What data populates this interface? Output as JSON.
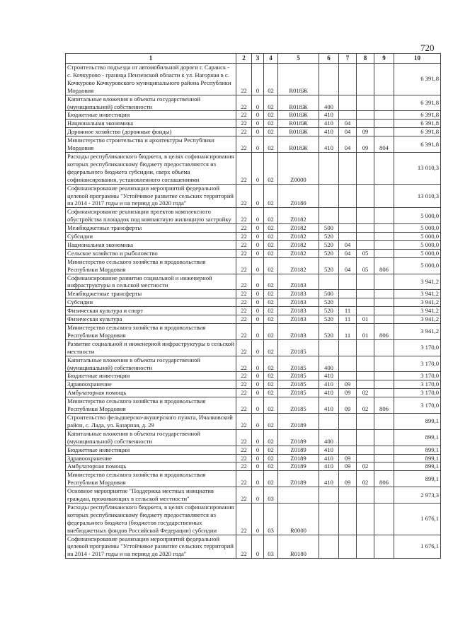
{
  "page_number": "720",
  "columns": [
    "1",
    "2",
    "3",
    "4",
    "5",
    "6",
    "7",
    "8",
    "9",
    "10"
  ],
  "rows": [
    {
      "name": "Строительство подъезда от автомобильной дороги г. Саранск - с. Кочкурово - граница Пензенской области к ул. Нагорная в с. Кочкурово Кочкуровского муниципального района Республики Мордовия",
      "c": [
        "22",
        "0",
        "02",
        "R018Ж",
        "",
        "",
        "",
        ""
      ],
      "value": "6 391,8"
    },
    {
      "name": "Капитальные вложения в объекты государственной (муниципальной) собственности",
      "c": [
        "22",
        "0",
        "02",
        "R018Ж",
        "400",
        "",
        "",
        ""
      ],
      "value": "6 391,8"
    },
    {
      "name": "Бюджетные инвестиции",
      "c": [
        "22",
        "0",
        "02",
        "R018Ж",
        "410",
        "",
        "",
        ""
      ],
      "value": "6 391,8"
    },
    {
      "name": "Национальная экономика",
      "c": [
        "22",
        "0",
        "02",
        "R018Ж",
        "410",
        "04",
        "",
        ""
      ],
      "value": "6 391,8"
    },
    {
      "name": "Дорожное хозяйство (дорожные фонды)",
      "c": [
        "22",
        "0",
        "02",
        "R018Ж",
        "410",
        "04",
        "09",
        ""
      ],
      "value": "6 391,8"
    },
    {
      "name": "Министерство строительства и архитектуры Республики Мордовия",
      "c": [
        "22",
        "0",
        "02",
        "R018Ж",
        "410",
        "04",
        "09",
        "804"
      ],
      "value": "6 391,8"
    },
    {
      "name": "Расходы республиканского бюджета, в целях софинансирования которых республиканскому бюджету предоставляются из федерального бюджета субсидии, сверх объема софинансирования, установленного соглашениями",
      "c": [
        "22",
        "0",
        "02",
        "Z0000",
        "",
        "",
        "",
        ""
      ],
      "value": "13 010,3"
    },
    {
      "name": "Софинансирование реализации мероприятий федеральной целевой программы \"Устойчивое развитие сельских территорий на 2014 - 2017 годы и на период до 2020 года\"",
      "c": [
        "22",
        "0",
        "02",
        "Z0180",
        "",
        "",
        "",
        ""
      ],
      "value": "13 010,3"
    },
    {
      "name": "Софинансирование реализации проектов комплексного обустройства площадок под компактную жилищную застройку",
      "c": [
        "22",
        "0",
        "02",
        "Z0182",
        "",
        "",
        "",
        ""
      ],
      "value": "5 000,0"
    },
    {
      "name": "Межбюджетные трансферты",
      "c": [
        "22",
        "0",
        "02",
        "Z0182",
        "500",
        "",
        "",
        ""
      ],
      "value": "5 000,0"
    },
    {
      "name": "Субсидии",
      "c": [
        "22",
        "0",
        "02",
        "Z0182",
        "520",
        "",
        "",
        ""
      ],
      "value": "5 000,0"
    },
    {
      "name": "Национальная экономика",
      "c": [
        "22",
        "0",
        "02",
        "Z0182",
        "520",
        "04",
        "",
        ""
      ],
      "value": "5 000,0"
    },
    {
      "name": "Сельское хозяйство и рыболовство",
      "c": [
        "22",
        "0",
        "02",
        "Z0182",
        "520",
        "04",
        "05",
        ""
      ],
      "value": "5 000,0"
    },
    {
      "name": "Министерство сельского хозяйства и продовольствия Республики Мордовия",
      "c": [
        "22",
        "0",
        "02",
        "Z0182",
        "520",
        "04",
        "05",
        "806"
      ],
      "value": "5 000,0"
    },
    {
      "name": "Софинансирование развития социальной и инженерной инфраструктуры в сельской местности",
      "c": [
        "22",
        "0",
        "02",
        "Z0183",
        "",
        "",
        "",
        ""
      ],
      "value": "3 941,2"
    },
    {
      "name": "Межбюджетные трансферты",
      "c": [
        "22",
        "0",
        "02",
        "Z0183",
        "500",
        "",
        "",
        ""
      ],
      "value": "3 941,2"
    },
    {
      "name": "Субсидии",
      "c": [
        "22",
        "0",
        "02",
        "Z0183",
        "520",
        "",
        "",
        ""
      ],
      "value": "3 941,2"
    },
    {
      "name": "Физическая культура и спорт",
      "c": [
        "22",
        "0",
        "02",
        "Z0183",
        "520",
        "11",
        "",
        ""
      ],
      "value": "3 941,2"
    },
    {
      "name": "Физическая культура",
      "c": [
        "22",
        "0",
        "02",
        "Z0183",
        "520",
        "11",
        "01",
        ""
      ],
      "value": "3 941,2"
    },
    {
      "name": "Министерство сельского хозяйства и продовольствия Республики Мордовия",
      "c": [
        "22",
        "0",
        "02",
        "Z0183",
        "520",
        "11",
        "01",
        "806"
      ],
      "value": "3 941,2"
    },
    {
      "name": "Развитие социальной и инженерной инфраструктуры в сельской местности",
      "c": [
        "22",
        "0",
        "02",
        "Z0185",
        "",
        "",
        "",
        ""
      ],
      "value": "3 170,0"
    },
    {
      "name": "Капитальные вложения в объекты государственной (муниципальной) собственности",
      "c": [
        "22",
        "0",
        "02",
        "Z0185",
        "400",
        "",
        "",
        ""
      ],
      "value": "3 170,0"
    },
    {
      "name": "Бюджетные инвестиции",
      "c": [
        "22",
        "0",
        "02",
        "Z0185",
        "410",
        "",
        "",
        ""
      ],
      "value": "3 170,0"
    },
    {
      "name": "Здравоохранение",
      "c": [
        "22",
        "0",
        "02",
        "Z0185",
        "410",
        "09",
        "",
        ""
      ],
      "value": "3 170,0"
    },
    {
      "name": "Амбулаторная помощь",
      "c": [
        "22",
        "0",
        "02",
        "Z0185",
        "410",
        "09",
        "02",
        ""
      ],
      "value": "3 170,0"
    },
    {
      "name": "Министерство сельского хозяйства и продовольствия Республики Мордовия",
      "c": [
        "22",
        "0",
        "02",
        "Z0185",
        "410",
        "09",
        "02",
        "806"
      ],
      "value": "3 170,0"
    },
    {
      "name": "Строительство фельдшерско-акушерского пункта, Ичалковский район, с. Лада, ул. Базарная, д. 29",
      "c": [
        "22",
        "0",
        "02",
        "Z0189",
        "",
        "",
        "",
        ""
      ],
      "value": "899,1"
    },
    {
      "name": "Капитальные вложения в объекты государственной (муниципальной) собственности",
      "c": [
        "22",
        "0",
        "02",
        "Z0189",
        "400",
        "",
        "",
        ""
      ],
      "value": "899,1"
    },
    {
      "name": "Бюджетные инвестиции",
      "c": [
        "22",
        "0",
        "02",
        "Z0189",
        "410",
        "",
        "",
        ""
      ],
      "value": "899,1"
    },
    {
      "name": "Здравоохранение",
      "c": [
        "22",
        "0",
        "02",
        "Z0189",
        "410",
        "09",
        "",
        ""
      ],
      "value": "899,1"
    },
    {
      "name": "Амбулаторная помощь",
      "c": [
        "22",
        "0",
        "02",
        "Z0189",
        "410",
        "09",
        "02",
        ""
      ],
      "value": "899,1"
    },
    {
      "name": "Министерство сельского хозяйства и продовольствия Республики Мордовия",
      "c": [
        "22",
        "0",
        "02",
        "Z0189",
        "410",
        "09",
        "02",
        "806"
      ],
      "value": "899,1"
    },
    {
      "name": "Основное мероприятие \"Поддержка местных инициатив граждан, проживающих в сельской местности\"",
      "c": [
        "22",
        "0",
        "03",
        "",
        "",
        "",
        "",
        ""
      ],
      "value": "2 973,3"
    },
    {
      "name": "Расходы республиканского бюджета, в целях софинансирования которых республиканскому бюджету предоставляются из федерального бюджета (бюджетов государственных внебюджетных фондов Российской Федерации) субсидии",
      "c": [
        "22",
        "0",
        "03",
        "R0000",
        "",
        "",
        "",
        ""
      ],
      "value": "1 676,1"
    },
    {
      "name": "Софинансирование реализации мероприятий федеральной целевой программы \"Устойчивое развитие сельских территорий на 2014 - 2017 годы и на период до 2020 года\"",
      "c": [
        "22",
        "0",
        "03",
        "R0180",
        "",
        "",
        "",
        ""
      ],
      "value": "1 676,1"
    }
  ]
}
